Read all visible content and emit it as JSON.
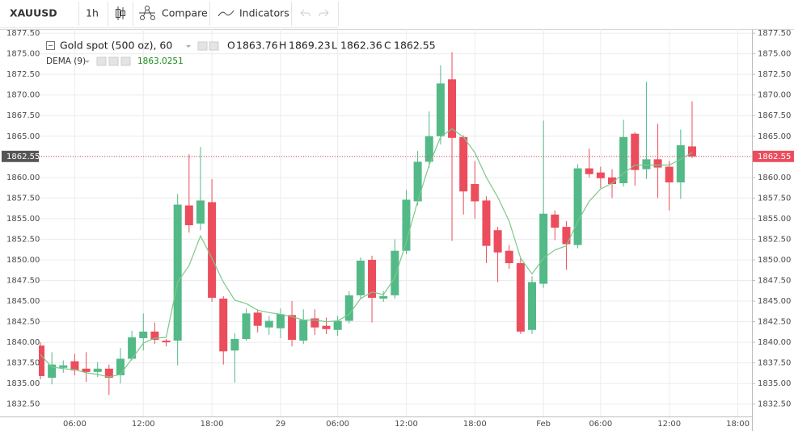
{
  "toolbar": {
    "symbol": "XAUUSD",
    "interval": "1h",
    "compare": "Compare",
    "indicators": "Indicators"
  },
  "chart_data": {
    "type": "candlestick",
    "title": "Gold spot (500 oz), 60",
    "ohlc_labels": [
      "O",
      "H",
      "L",
      "C"
    ],
    "up_color": "#53b987",
    "down_color": "#eb4d5c",
    "categories": [
      null,
      null,
      null,
      "06:00",
      null,
      null,
      null,
      null,
      null,
      "12:00",
      null,
      null,
      null,
      null,
      null,
      "18:00",
      null,
      null,
      null,
      null,
      null,
      "29",
      null,
      null,
      null,
      null,
      "06:00",
      null,
      null,
      null,
      null,
      null,
      "12:00",
      null,
      null,
      null,
      null,
      null,
      "18:00",
      null,
      null,
      null,
      null,
      null,
      "Feb",
      null,
      null,
      null,
      null,
      "06:00",
      null,
      null,
      null,
      null,
      null,
      "12:00",
      null,
      null,
      null,
      null,
      null,
      "18:00"
    ],
    "open": [
      1839.6,
      1835.7,
      1836.9,
      1837.7,
      1836.8,
      1836.4,
      1836.8,
      1836.0,
      1838.0,
      1840.5,
      1841.3,
      1840.2,
      1840.2,
      1856.6,
      1854.4,
      1857.0,
      1845.3,
      1839.0,
      1840.4,
      1843.6,
      1841.8,
      1841.7,
      1843.3,
      1840.2,
      1842.9,
      1842.0,
      1841.5,
      1842.6,
      1845.7,
      1850.0,
      1845.3,
      1845.7,
      1851.1,
      1857.1,
      1861.9,
      1865.0,
      1871.9,
      1864.9,
      1859.2,
      1857.2,
      1853.6,
      1851.1,
      1849.6,
      1841.5,
      1847.1,
      1855.5,
      1854.0,
      1851.8,
      1861.1,
      1860.6,
      1860.0,
      1859.3,
      1865.3,
      1861.0,
      1862.2,
      1861.3,
      1859.4,
      1863.76,
      null,
      null,
      null,
      null
    ],
    "high": [
      1840.0,
      1838.8,
      1837.8,
      1838.6,
      1838.8,
      1837.6,
      1837.3,
      1839.3,
      1841.4,
      1843.5,
      1842.4,
      1840.4,
      1858.0,
      1862.8,
      1863.7,
      1859.8,
      1845.6,
      1841.1,
      1844.1,
      1844.0,
      1843.2,
      1844.1,
      1845.0,
      1844.0,
      1844.0,
      1843.0,
      1843.2,
      1846.2,
      1850.3,
      1850.5,
      1846.2,
      1852.5,
      1858.5,
      1863.2,
      1868.0,
      1873.6,
      1875.2,
      1865.1,
      1862.0,
      1857.7,
      1854.0,
      1851.8,
      1850.3,
      1848.0,
      1866.9,
      1856.0,
      1854.7,
      1861.6,
      1863.5,
      1861.3,
      1861.0,
      1867.0,
      1865.5,
      1871.6,
      1866.5,
      1862.0,
      1865.8,
      1869.23,
      null,
      null,
      null,
      null
    ],
    "low": [
      1835.5,
      1834.9,
      1836.3,
      1836.0,
      1835.2,
      1835.8,
      1833.6,
      1835.0,
      1837.8,
      1839.0,
      1839.8,
      1839.5,
      1837.2,
      1853.3,
      1853.6,
      1844.9,
      1837.3,
      1835.1,
      1840.2,
      1841.2,
      1840.9,
      1840.5,
      1839.5,
      1839.8,
      1840.9,
      1841.0,
      1840.8,
      1842.3,
      1845.2,
      1842.4,
      1844.9,
      1845.3,
      1850.7,
      1856.6,
      1861.2,
      1864.0,
      1852.3,
      1855.5,
      1855.0,
      1849.6,
      1847.3,
      1848.9,
      1841.0,
      1841.0,
      1846.6,
      1852.4,
      1848.8,
      1851.4,
      1860.0,
      1858.7,
      1857.5,
      1858.9,
      1859.0,
      1859.8,
      1857.5,
      1856.0,
      1857.4,
      1862.36,
      null,
      null,
      null,
      null
    ],
    "close": [
      1835.9,
      1837.3,
      1837.2,
      1836.6,
      1836.4,
      1836.8,
      1835.7,
      1838.0,
      1840.6,
      1841.3,
      1840.3,
      1840.0,
      1856.7,
      1854.2,
      1857.2,
      1845.4,
      1838.9,
      1840.4,
      1843.5,
      1842.0,
      1842.6,
      1843.4,
      1840.3,
      1842.7,
      1841.8,
      1841.6,
      1842.6,
      1845.7,
      1849.9,
      1845.4,
      1845.6,
      1851.1,
      1857.3,
      1861.9,
      1865.0,
      1871.4,
      1864.8,
      1858.3,
      1857.1,
      1851.7,
      1850.9,
      1849.6,
      1841.3,
      1847.3,
      1855.6,
      1853.9,
      1851.9,
      1861.1,
      1860.4,
      1859.9,
      1859.2,
      1864.9,
      1860.9,
      1862.2,
      1861.2,
      1859.4,
      1863.9,
      1862.55,
      null,
      null,
      null,
      null
    ],
    "overlays": [
      {
        "name": "DEMA (9)",
        "color": "#7cc88a",
        "values": [
          1838.5,
          1837.0,
          1836.8,
          1836.7,
          1836.3,
          1836.1,
          1835.8,
          1836.1,
          1838.0,
          1839.9,
          1840.5,
          1840.6,
          1847.3,
          1849.3,
          1852.9,
          1850.2,
          1847.3,
          1845.1,
          1844.7,
          1843.9,
          1843.6,
          1843.4,
          1843.1,
          1842.7,
          1842.7,
          1842.5,
          1842.6,
          1843.4,
          1845.3,
          1846.1,
          1845.8,
          1847.8,
          1852.2,
          1857.1,
          1861.5,
          1864.9,
          1865.9,
          1864.9,
          1863.0,
          1860.0,
          1857.6,
          1854.7,
          1850.2,
          1848.3,
          1850.2,
          1851.2,
          1851.7,
          1854.7,
          1857.1,
          1858.6,
          1859.3,
          1860.5,
          1861.5,
          1861.5,
          1861.5,
          1861.5,
          1862.2,
          1863.0251,
          null,
          null,
          null,
          null
        ]
      }
    ],
    "ylim": [
      1831.0,
      1878.0
    ],
    "yticks": [
      {
        "value": 1832.5,
        "label": "1832.50"
      },
      {
        "value": 1835,
        "label": "1835.00"
      },
      {
        "value": 1837.5,
        "label": "1837.50"
      },
      {
        "value": 1840,
        "label": "1840.00"
      },
      {
        "value": 1842.5,
        "label": "1842.50"
      },
      {
        "value": 1845,
        "label": "1845.00"
      },
      {
        "value": 1847.5,
        "label": "1847.50"
      },
      {
        "value": 1850,
        "label": "1850.00"
      },
      {
        "value": 1852.5,
        "label": "1852.50"
      },
      {
        "value": 1855,
        "label": "1855.00"
      },
      {
        "value": 1857.5,
        "label": "1857.50"
      },
      {
        "value": 1860,
        "label": "1860.00"
      },
      {
        "value": 1862.5,
        "label": "1862.50"
      },
      {
        "value": 1865,
        "label": "1865.00"
      },
      {
        "value": 1867.5,
        "label": "1867.50"
      },
      {
        "value": 1870,
        "label": "1870.00"
      },
      {
        "value": 1872.5,
        "label": "1872.50"
      },
      {
        "value": 1875,
        "label": "1875.00"
      },
      {
        "value": 1877.5,
        "label": "1877.50"
      }
    ],
    "grid": true
  }
}
